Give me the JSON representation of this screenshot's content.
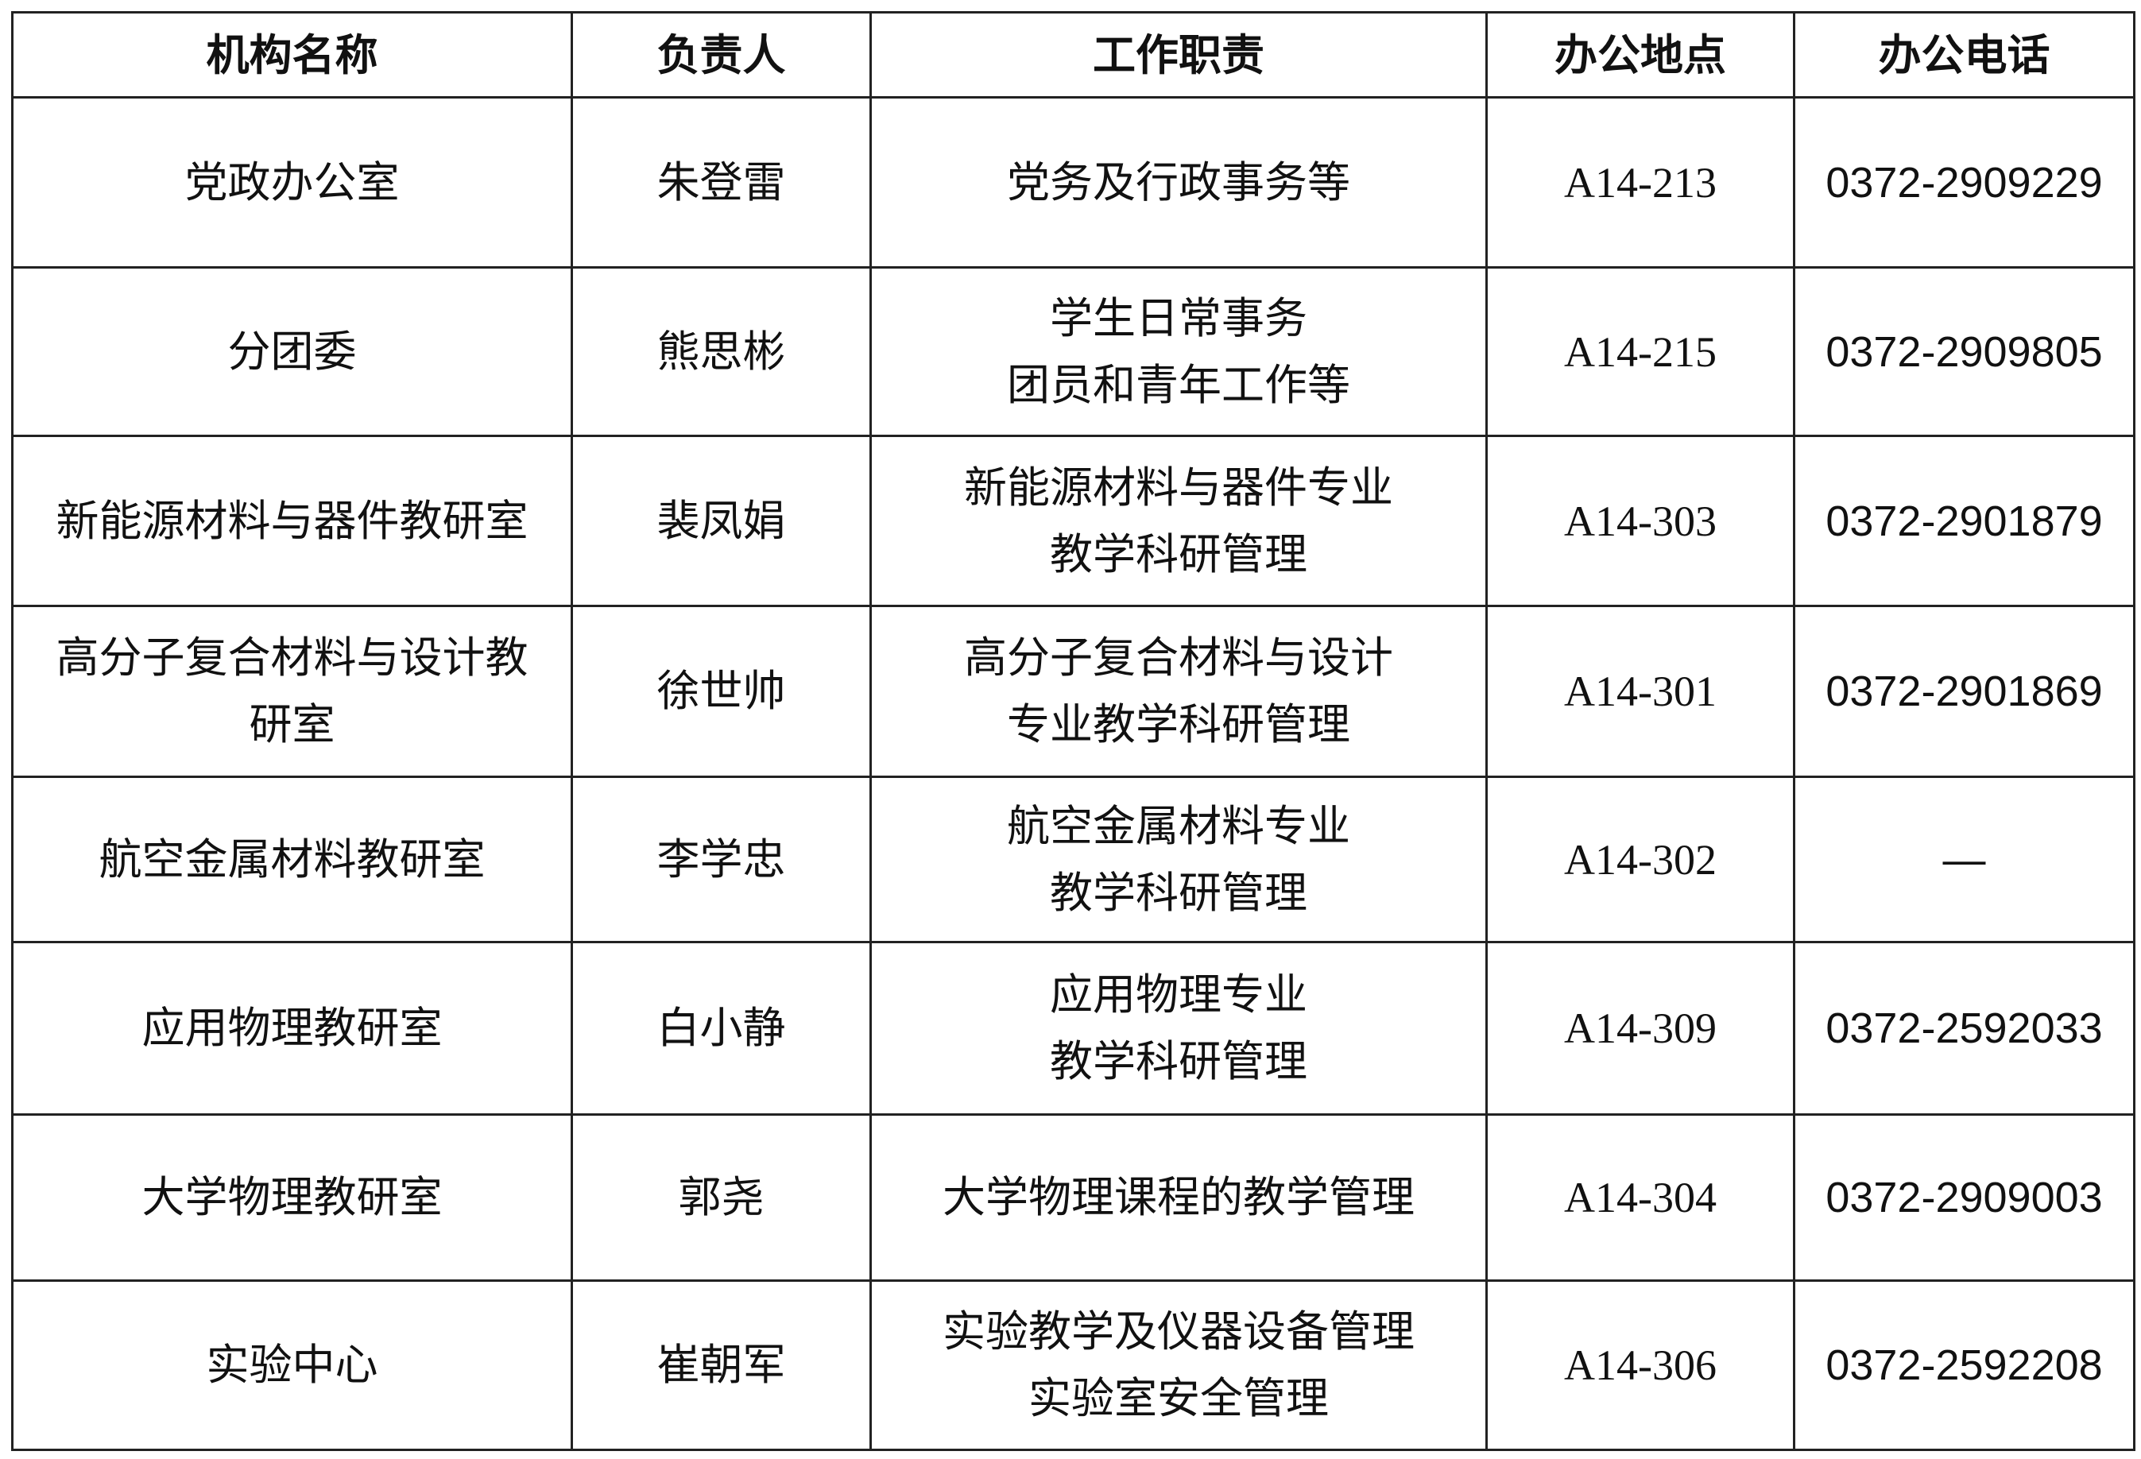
{
  "table": {
    "headers": [
      "机构名称",
      "负责人",
      "工作职责",
      "办公地点",
      "办公电话"
    ],
    "rows": [
      {
        "org": [
          "党政办公室"
        ],
        "head": "朱登雷",
        "duty": [
          "党务及行政事务等"
        ],
        "location": "A14-213",
        "phone": "0372-2909229"
      },
      {
        "org": [
          "分团委"
        ],
        "head": "熊思彬",
        "duty": [
          "学生日常事务",
          "团员和青年工作等"
        ],
        "location": "A14-215",
        "phone": "0372-2909805"
      },
      {
        "org": [
          "新能源材料与器件教研室"
        ],
        "head": "裴凤娟",
        "duty": [
          "新能源材料与器件专业",
          "教学科研管理"
        ],
        "location": "A14-303",
        "phone": "0372-2901879"
      },
      {
        "org": [
          "高分子复合材料与设计教",
          "研室"
        ],
        "head": "徐世帅",
        "duty": [
          "高分子复合材料与设计",
          "专业教学科研管理"
        ],
        "location": "A14-301",
        "phone": "0372-2901869"
      },
      {
        "org": [
          "航空金属材料教研室"
        ],
        "head": "李学忠",
        "duty": [
          "航空金属材料专业",
          "教学科研管理"
        ],
        "location": "A14-302",
        "phone": "—"
      },
      {
        "org": [
          "应用物理教研室"
        ],
        "head": "白小静",
        "duty": [
          "应用物理专业",
          "教学科研管理"
        ],
        "location": "A14-309",
        "phone": "0372-2592033"
      },
      {
        "org": [
          "大学物理教研室"
        ],
        "head": "郭尧",
        "duty": [
          "大学物理课程的教学管理"
        ],
        "location": "A14-304",
        "phone": "0372-2909003"
      },
      {
        "org": [
          "实验中心"
        ],
        "head": "崔朝军",
        "duty": [
          "实验教学及仪器设备管理",
          "实验室安全管理"
        ],
        "location": "A14-306",
        "phone": "0372-2592208"
      }
    ]
  }
}
